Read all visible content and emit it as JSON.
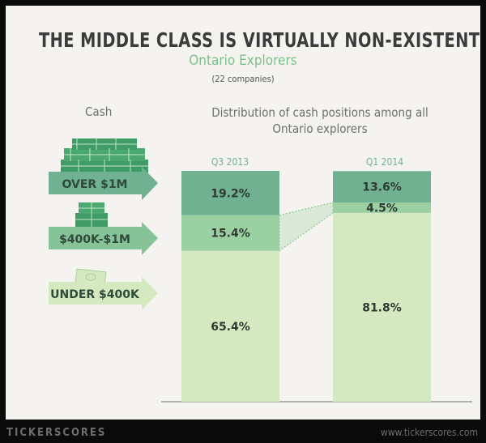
{
  "title": "THE MIDDLE CLASS IS VIRTUALLY NON-EXISTENT",
  "subtitle": "Ontario Explorers",
  "note": "(22 companies)",
  "cash_label": "Cash",
  "dist_label": "Distribution of cash positions among all Ontario explorers",
  "footer": {
    "brand": "TICKERSCORES",
    "url": "www.tickerscores.com"
  },
  "categories_legend": [
    "OVER $1M",
    "$400K-$1M",
    "UNDER $400K"
  ],
  "colors": {
    "top": "#6fb191",
    "mid": "#9bd0a3",
    "bottom": "#d4e9c0",
    "arrow_top": "#6fb191",
    "arrow_mid": "#86c398",
    "arrow_bottom": "#d4e9c0",
    "money": "#3f9c66"
  },
  "chart_data": {
    "type": "bar",
    "stacked": true,
    "categories": [
      "Q3 2013",
      "Q1 2014"
    ],
    "series": [
      {
        "name": "UNDER $400K",
        "values": [
          65.4,
          81.8
        ],
        "labels": [
          "65.4%",
          "81.8%"
        ]
      },
      {
        "name": "$400K-$1M",
        "values": [
          15.4,
          4.5
        ],
        "labels": [
          "15.4%",
          "4.5%"
        ]
      },
      {
        "name": "OVER $1M",
        "values": [
          19.2,
          13.6
        ],
        "labels": [
          "19.2%",
          "13.6%"
        ]
      }
    ],
    "ylim": [
      0,
      100
    ]
  }
}
